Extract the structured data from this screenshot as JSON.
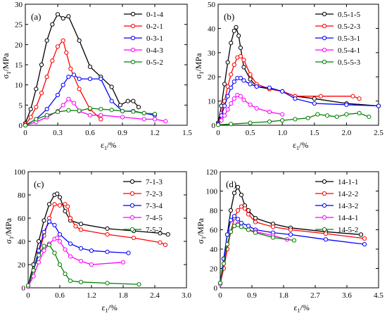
{
  "chart_data": [
    {
      "panel": "(a)",
      "type": "line",
      "xlabel": "ε1/%",
      "ylabel": "σ1/MPa",
      "xlim": [
        0,
        1.5
      ],
      "ylim": [
        0,
        30
      ],
      "xticks": [
        "0",
        "0.3",
        "0.6",
        "0.9",
        "1.2",
        "1.5"
      ],
      "yticks": [
        "0",
        "5",
        "10",
        "15",
        "20",
        "25",
        "30"
      ],
      "legend_position": "top-right",
      "series": [
        {
          "name": "0-1-4",
          "color": "#000000",
          "x": [
            0,
            0.05,
            0.1,
            0.15,
            0.2,
            0.25,
            0.3,
            0.35,
            0.4,
            0.5,
            0.6,
            0.7,
            0.8,
            0.88,
            0.95,
            1.0,
            1.05
          ],
          "y": [
            0.5,
            4,
            9,
            15,
            21,
            25,
            27.5,
            26.5,
            27,
            21,
            14.5,
            12,
            9.5,
            5,
            6,
            6,
            4.5
          ]
        },
        {
          "name": "0-2-1",
          "color": "#ff0000",
          "x": [
            0,
            0.05,
            0.1,
            0.15,
            0.2,
            0.25,
            0.3,
            0.35,
            0.38,
            0.42,
            0.5,
            0.6,
            0.7
          ],
          "y": [
            0.2,
            2,
            4.5,
            8,
            12,
            16,
            19.5,
            21,
            18,
            14,
            9,
            4,
            1.5
          ]
        },
        {
          "name": "0-3-1",
          "color": "#0000ff",
          "x": [
            0,
            0.1,
            0.2,
            0.3,
            0.35,
            0.4,
            0.45,
            0.5,
            0.6,
            0.7,
            0.8,
            0.9,
            1.0,
            1.1,
            1.2
          ],
          "y": [
            0,
            1.5,
            4,
            7.5,
            10,
            12,
            12.5,
            11.5,
            11.5,
            11.5,
            6,
            3.5,
            3.5,
            3,
            2.5
          ]
        },
        {
          "name": "0-4-3",
          "color": "#ff00ff",
          "x": [
            0,
            0.1,
            0.2,
            0.3,
            0.35,
            0.4,
            0.45,
            0.5,
            0.6,
            0.7,
            0.9,
            1.1,
            1.2,
            1.3
          ],
          "y": [
            0,
            0.8,
            2,
            3.5,
            5,
            6.5,
            5.5,
            3.5,
            2.5,
            2.5,
            2,
            1.5,
            1.5,
            1
          ]
        },
        {
          "name": "0-5-2",
          "color": "#008000",
          "x": [
            0,
            0.1,
            0.2,
            0.3,
            0.4,
            0.5,
            0.6,
            0.7,
            0.8,
            0.9,
            1.0,
            1.1,
            1.2
          ],
          "y": [
            0,
            1.5,
            2.5,
            3.3,
            3.7,
            3.6,
            4.2,
            4.0,
            3.8,
            3.5,
            3.4,
            3.0,
            2.8
          ]
        }
      ]
    },
    {
      "panel": "(b)",
      "type": "line",
      "xlabel": "ε1/%",
      "ylabel": "σ1/MPa",
      "xlim": [
        0,
        2.5
      ],
      "ylim": [
        0,
        50
      ],
      "xticks": [
        "0",
        "0.5",
        "1.0",
        "1.5",
        "2.0",
        "2.5"
      ],
      "yticks": [
        "0",
        "10",
        "20",
        "30",
        "40",
        "50"
      ],
      "legend_position": "top-right",
      "series": [
        {
          "name": "0.5-1-5",
          "color": "#000000",
          "x": [
            0,
            0.05,
            0.1,
            0.15,
            0.2,
            0.25,
            0.28,
            0.32,
            0.35,
            0.4,
            0.5,
            0.6,
            0.8,
            1.0,
            1.2,
            1.5,
            2.0,
            2.5
          ],
          "y": [
            1,
            8,
            17,
            26,
            34,
            39,
            40.5,
            37,
            32,
            24,
            19,
            16,
            15,
            14,
            12,
            11,
            9,
            8
          ]
        },
        {
          "name": "0.5-2-3",
          "color": "#ff0000",
          "x": [
            0,
            0.05,
            0.1,
            0.15,
            0.2,
            0.25,
            0.3,
            0.35,
            0.4,
            0.5,
            0.6,
            0.8,
            1.0,
            1.2,
            1.6,
            2.1,
            2.2
          ],
          "y": [
            0.5,
            5,
            10,
            16,
            21,
            25,
            28,
            28.5,
            27,
            21,
            17,
            15,
            14,
            12,
            12,
            12,
            11
          ]
        },
        {
          "name": "0.5-3-1",
          "color": "#0000ff",
          "x": [
            0,
            0.05,
            0.1,
            0.15,
            0.2,
            0.25,
            0.3,
            0.35,
            0.4,
            0.5,
            0.6,
            0.8,
            1.0,
            1.2,
            1.5,
            2.0,
            2.5
          ],
          "y": [
            0.5,
            4,
            8,
            12,
            15.5,
            18,
            19.5,
            19.5,
            18.5,
            17,
            16,
            15.5,
            14,
            11,
            9,
            8.5,
            8
          ]
        },
        {
          "name": "0.5-4-1",
          "color": "#ff00ff",
          "x": [
            0,
            0.05,
            0.1,
            0.15,
            0.2,
            0.25,
            0.3,
            0.35,
            0.4,
            0.5,
            0.6,
            0.8,
            1.0
          ],
          "y": [
            0.3,
            2,
            4,
            6.5,
            9,
            11,
            12.5,
            12,
            10.5,
            8.5,
            7,
            5.5,
            4.5
          ]
        },
        {
          "name": "0.5-5-3",
          "color": "#008000",
          "x": [
            0,
            0.2,
            0.5,
            0.8,
            1.0,
            1.2,
            1.4,
            1.55,
            1.7,
            1.85,
            2.0,
            2.2,
            2.35
          ],
          "y": [
            0.2,
            0.5,
            1,
            1.5,
            2,
            2.5,
            3,
            4.5,
            4,
            3.5,
            4.5,
            5,
            3.5
          ]
        }
      ]
    },
    {
      "panel": "(c)",
      "type": "line",
      "xlabel": "ε1/%",
      "ylabel": "σ1/MPa",
      "xlim": [
        0,
        3.0
      ],
      "ylim": [
        0,
        100
      ],
      "xticks": [
        "0",
        "0.6",
        "1.2",
        "1.8",
        "2.4",
        "3.0"
      ],
      "yticks": [
        "0",
        "20",
        "40",
        "60",
        "80",
        "100"
      ],
      "legend_position": "top-right",
      "series": [
        {
          "name": "7-1-3",
          "color": "#000000",
          "x": [
            0,
            0.1,
            0.2,
            0.3,
            0.4,
            0.5,
            0.55,
            0.6,
            0.7,
            0.8,
            1.0,
            1.5,
            2.0,
            2.5,
            2.65
          ],
          "y": [
            2,
            20,
            40,
            58,
            72,
            80,
            81,
            78,
            66,
            58,
            55,
            51,
            49,
            47,
            46
          ]
        },
        {
          "name": "7-2-3",
          "color": "#ff0000",
          "x": [
            0,
            0.1,
            0.2,
            0.3,
            0.4,
            0.5,
            0.6,
            0.7,
            0.75,
            0.8,
            0.9,
            1.0,
            1.5,
            2.0,
            2.5,
            2.6
          ],
          "y": [
            1,
            15,
            30,
            45,
            60,
            72,
            71,
            72,
            70,
            60,
            53,
            50,
            46,
            43,
            39,
            37
          ]
        },
        {
          "name": "7-3-4",
          "color": "#0000ff",
          "x": [
            0,
            0.1,
            0.2,
            0.3,
            0.4,
            0.5,
            0.6,
            0.8,
            1.0,
            1.2,
            1.5,
            1.9
          ],
          "y": [
            1,
            15,
            32,
            48,
            57,
            54,
            46,
            38,
            34,
            32,
            31,
            30
          ]
        },
        {
          "name": "7-4-5",
          "color": "#ff00ff",
          "x": [
            0,
            0.1,
            0.2,
            0.3,
            0.4,
            0.5,
            0.55,
            0.6,
            0.7,
            0.8,
            1.0,
            1.2,
            1.8
          ],
          "y": [
            1,
            10,
            22,
            32,
            38,
            42,
            43,
            40,
            33,
            27,
            23,
            20,
            22
          ]
        },
        {
          "name": "7-5-2",
          "color": "#008000",
          "x": [
            0,
            0.1,
            0.2,
            0.3,
            0.4,
            0.5,
            0.6,
            0.7,
            0.8,
            1.0,
            1.5,
            2.1
          ],
          "y": [
            2,
            15,
            28,
            36,
            37,
            30,
            20,
            12,
            6,
            5,
            4,
            3
          ]
        }
      ]
    },
    {
      "panel": "(d)",
      "type": "line",
      "xlabel": "ε1/%",
      "ylabel": "σ1/MPa",
      "xlim": [
        0,
        4.5
      ],
      "ylim": [
        0,
        120
      ],
      "xticks": [
        "0",
        "0.9",
        "1.8",
        "2.7",
        "3.6",
        "4.5"
      ],
      "yticks": [
        "0",
        "20",
        "40",
        "60",
        "80",
        "100",
        "120"
      ],
      "legend_position": "top-right",
      "series": [
        {
          "name": "14-1-1",
          "color": "#000000",
          "x": [
            0,
            0.1,
            0.2,
            0.3,
            0.4,
            0.5,
            0.6,
            0.7,
            0.8,
            1.0,
            1.5,
            2.0,
            3.0,
            4.0
          ],
          "y": [
            5,
            30,
            55,
            80,
            98,
            104,
            96,
            85,
            80,
            72,
            66,
            62,
            58,
            55
          ]
        },
        {
          "name": "14-2-2",
          "color": "#ff0000",
          "x": [
            0,
            0.1,
            0.2,
            0.3,
            0.4,
            0.5,
            0.6,
            0.7,
            0.8,
            1.0,
            1.5,
            2.0,
            3.0,
            4.1
          ],
          "y": [
            4,
            20,
            40,
            58,
            72,
            80,
            84,
            82,
            76,
            68,
            63,
            60,
            56,
            51
          ]
        },
        {
          "name": "14-3-2",
          "color": "#0000ff",
          "x": [
            0,
            0.1,
            0.2,
            0.3,
            0.4,
            0.5,
            0.6,
            0.8,
            1.0,
            1.5,
            2.0,
            3.0,
            4.1
          ],
          "y": [
            5,
            30,
            55,
            70,
            74,
            71,
            67,
            64,
            60,
            57,
            55,
            50,
            45
          ]
        },
        {
          "name": "14-4-1",
          "color": "#ff00ff",
          "x": [
            0,
            0.1,
            0.2,
            0.3,
            0.4,
            0.5,
            0.6,
            0.8,
            1.0,
            1.5,
            1.9
          ],
          "y": [
            4,
            25,
            45,
            58,
            64,
            66,
            63,
            60,
            58,
            54,
            50
          ]
        },
        {
          "name": "14-5-2",
          "color": "#008000",
          "x": [
            0,
            0.1,
            0.2,
            0.3,
            0.4,
            0.5,
            0.6,
            0.8,
            1.0,
            1.5,
            2.1
          ],
          "y": [
            5,
            25,
            45,
            58,
            64,
            65,
            63,
            60,
            57,
            52,
            49
          ]
        }
      ]
    }
  ]
}
